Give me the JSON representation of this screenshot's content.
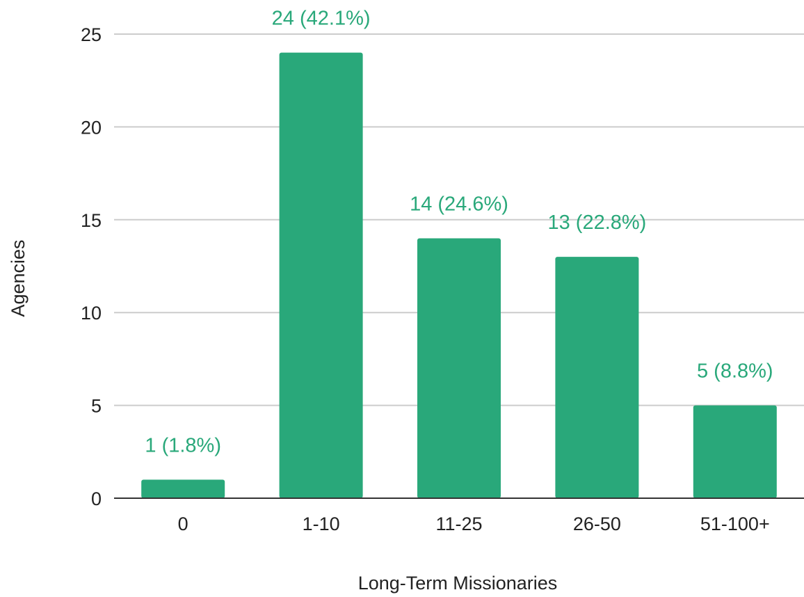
{
  "chart_data": {
    "type": "bar",
    "title": "",
    "xlabel": "Long-Term Missionaries",
    "ylabel": "Agencies",
    "categories": [
      "0",
      "1-10",
      "11-25",
      "26-50",
      "51-100+"
    ],
    "series": [
      {
        "values": [
          1,
          24,
          14,
          13,
          5
        ],
        "data_labels": [
          "1 (1.8%)",
          "24 (42.1%)",
          "14 (24.6%)",
          "13 (22.8%)",
          "5 (8.8%)"
        ]
      }
    ],
    "ylim": [
      0,
      25
    ],
    "yticks": [
      "0",
      "5",
      "10",
      "15",
      "20",
      "25"
    ],
    "grid": true,
    "legend": "none",
    "colors": {
      "bar": "#29a87a",
      "data_label": "#29a87a",
      "grid": "#cccccc",
      "axis": "#333333"
    }
  }
}
